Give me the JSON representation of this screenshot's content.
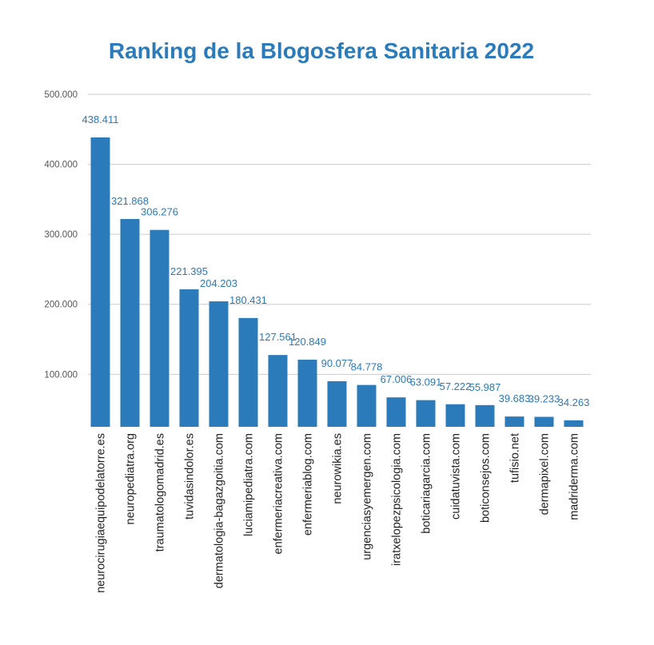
{
  "chart_data": {
    "type": "bar",
    "title": "Ranking de la Blogosfera Sanitaria 2022",
    "xlabel": "",
    "ylabel": "",
    "ylim": [
      25000,
      500000
    ],
    "yticks": [
      100000,
      200000,
      300000,
      400000,
      500000
    ],
    "ytick_labels": [
      "100.000",
      "200.000",
      "300.000",
      "400.000",
      "500.000"
    ],
    "grid": true,
    "legend": "none",
    "categories": [
      "neurocirugiaequipodelatorre.es",
      "neuropediatra.org",
      "traumatologomadrid.es",
      "tuvidasindolor.es",
      "dermatologia-bagazgoitia.com",
      "luciamipediatra.com",
      "enfermeriacreativa.com",
      "enfermeriablog.com",
      "neurowikia.es",
      "urgenciasyemergen.com",
      "iratxelopezpsicologia.com",
      "boticariagarcia.com",
      "cuidatuvista.com",
      "boticonsejos.com",
      "tufisio.net",
      "dermapixel.com",
      "madriderma.com"
    ],
    "values": [
      438411,
      321868,
      306276,
      221395,
      204203,
      180431,
      127561,
      120849,
      90077,
      84778,
      67006,
      63091,
      57222,
      55987,
      39683,
      39233,
      34263
    ],
    "value_labels": [
      "438.411",
      "321.868",
      "306.276",
      "221.395",
      "204.203",
      "180.431",
      "127.561",
      "120.849",
      "90.077",
      "84.778",
      "67.006",
      "63.091",
      "57.222",
      "55.987",
      "39.683",
      "39.233",
      "34.263"
    ],
    "colors": {
      "bar": "#2b7bba",
      "title": "#2b7bba",
      "data_label": "#2b7bba",
      "grid": "#cccccc"
    }
  }
}
